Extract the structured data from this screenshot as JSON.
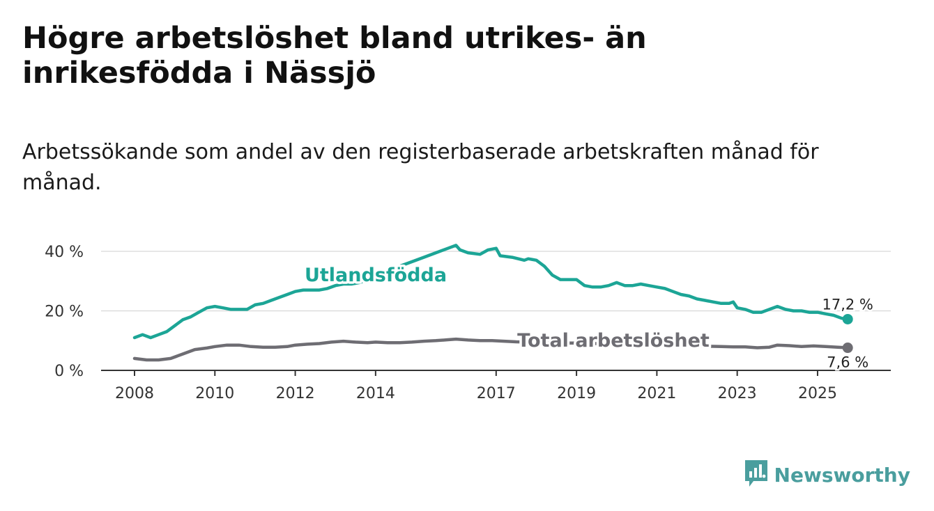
{
  "title": "Högre arbetslöshet bland utrikes- än inrikesfödda i Nässjö",
  "subtitle": "Arbetssökande som andel av den registerbaserade arbetskraften månad för månad.",
  "brand": {
    "name": "Newsworthy",
    "icon": "bar-chart-logo-icon"
  },
  "colors": {
    "foreign": "#1ca596",
    "total": "#6e6d73",
    "grid": "#dddddd",
    "axis": "#333333",
    "brand": "#4a9e9e"
  },
  "chart_data": {
    "type": "line",
    "title": "",
    "xlabel": "",
    "ylabel": "",
    "xlim": [
      2008.0,
      2025.92
    ],
    "ylim": [
      0,
      40
    ],
    "x_ticks": [
      2008,
      2010,
      2012,
      2014,
      2017,
      2019,
      2021,
      2023,
      2025
    ],
    "x_tick_labels": [
      "2008",
      "2010",
      "2012",
      "2014",
      "2017",
      "2019",
      "2021",
      "2023",
      "2025"
    ],
    "y_ticks": [
      0,
      20,
      40
    ],
    "y_tick_labels": [
      "0 %",
      "20 %",
      "40 %"
    ],
    "grid": true,
    "series": [
      {
        "name": "Utlandsfödda",
        "color": "#1ca596",
        "end_label": "17,2 %",
        "x": [
          2008.0,
          2008.2,
          2008.4,
          2008.6,
          2008.8,
          2009.0,
          2009.2,
          2009.4,
          2009.6,
          2009.8,
          2010.0,
          2010.2,
          2010.4,
          2010.6,
          2010.8,
          2011.0,
          2011.2,
          2011.4,
          2011.6,
          2011.8,
          2012.0,
          2012.2,
          2012.4,
          2012.6,
          2012.8,
          2013.0,
          2013.2,
          2013.4,
          2013.6,
          2013.8,
          2014.0,
          2014.3,
          2014.6,
          2014.9,
          2015.2,
          2015.5,
          2015.8,
          2016.0,
          2016.1,
          2016.3,
          2016.6,
          2016.8,
          2017.0,
          2017.1,
          2017.4,
          2017.7,
          2017.8,
          2018.0,
          2018.2,
          2018.4,
          2018.6,
          2018.8,
          2019.0,
          2019.2,
          2019.4,
          2019.6,
          2019.8,
          2020.0,
          2020.2,
          2020.4,
          2020.6,
          2020.8,
          2021.0,
          2021.2,
          2021.4,
          2021.6,
          2021.8,
          2022.0,
          2022.2,
          2022.4,
          2022.6,
          2022.8,
          2022.9,
          2023.0,
          2023.2,
          2023.4,
          2023.6,
          2023.8,
          2024.0,
          2024.2,
          2024.4,
          2024.6,
          2024.8,
          2025.0,
          2025.2,
          2025.4,
          2025.6,
          2025.75
        ],
        "y": [
          11,
          12,
          11,
          12,
          13,
          15,
          17,
          18,
          19.5,
          21,
          21.5,
          21,
          20.5,
          20.5,
          20.5,
          22,
          22.5,
          23.5,
          24.5,
          25.5,
          26.5,
          27,
          27,
          27,
          27.5,
          28.5,
          29,
          29,
          29.5,
          30.5,
          31.5,
          33,
          35,
          36.5,
          38,
          39.5,
          41,
          42,
          40.5,
          39.5,
          39,
          40.5,
          41,
          38.5,
          38,
          37,
          37.5,
          37,
          35,
          32,
          30.5,
          30.5,
          30.5,
          28.5,
          28,
          28,
          28.5,
          29.5,
          28.5,
          28.5,
          29,
          28.5,
          28,
          27.5,
          26.5,
          25.5,
          25,
          24,
          23.5,
          23,
          22.5,
          22.5,
          23,
          21,
          20.5,
          19.5,
          19.5,
          20.5,
          21.5,
          20.5,
          20,
          20,
          19.5,
          19.5,
          19,
          18.5,
          17.5,
          17.2
        ]
      },
      {
        "name": "Total arbetslöshet",
        "color": "#6e6d73",
        "end_label": "7,6 %",
        "x": [
          2008.0,
          2008.3,
          2008.6,
          2008.9,
          2009.2,
          2009.5,
          2009.8,
          2010.0,
          2010.3,
          2010.6,
          2010.9,
          2011.2,
          2011.5,
          2011.8,
          2012.0,
          2012.3,
          2012.6,
          2012.9,
          2013.2,
          2013.5,
          2013.8,
          2014.0,
          2014.3,
          2014.6,
          2014.9,
          2015.2,
          2015.5,
          2015.8,
          2016.0,
          2016.3,
          2016.6,
          2016.9,
          2017.2,
          2017.5,
          2017.8,
          2018.1,
          2018.4,
          2018.7,
          2019.0,
          2019.3,
          2019.6,
          2019.9,
          2020.2,
          2020.5,
          2020.8,
          2021.1,
          2021.4,
          2021.7,
          2022.0,
          2022.3,
          2022.6,
          2022.9,
          2023.2,
          2023.5,
          2023.8,
          2024.0,
          2024.3,
          2024.6,
          2024.9,
          2025.2,
          2025.5,
          2025.75
        ],
        "y": [
          4,
          3.5,
          3.5,
          4,
          5.5,
          7,
          7.5,
          8,
          8.5,
          8.5,
          8,
          7.8,
          7.8,
          8,
          8.5,
          8.8,
          9,
          9.5,
          9.8,
          9.5,
          9.3,
          9.5,
          9.3,
          9.3,
          9.5,
          9.8,
          10,
          10.3,
          10.5,
          10.2,
          10,
          10,
          9.8,
          9.6,
          9.5,
          9.5,
          9.3,
          9.2,
          9.2,
          9.0,
          9.0,
          8.9,
          8.8,
          8.7,
          8.6,
          8.5,
          8.4,
          8.3,
          8.2,
          8.1,
          8.0,
          7.9,
          7.9,
          7.6,
          7.8,
          8.5,
          8.3,
          8.0,
          8.2,
          8.0,
          7.8,
          7.6
        ]
      }
    ]
  }
}
